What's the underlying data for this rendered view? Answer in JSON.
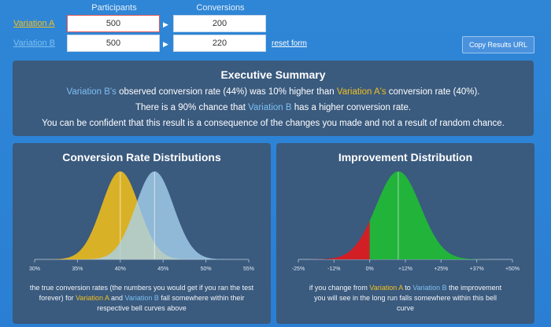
{
  "inputs": {
    "participants_header": "Participants",
    "conversions_header": "Conversions",
    "variation_a_label": "Variation A",
    "variation_b_label": "Variation B",
    "a_participants": "500",
    "a_conversions": "200",
    "b_participants": "500",
    "b_conversions": "220",
    "reset_label": "reset form",
    "copy_button_label": "Copy Results URL"
  },
  "summary": {
    "title": "Executive Summary",
    "line1": {
      "b_name": "Variation B's",
      "t1": " observed conversion rate (44%) was 10% higher than ",
      "a_name": "Variation A's",
      "t2": " conversion rate (40%)."
    },
    "line2": {
      "t1": "There is a 90% chance that ",
      "b_name": "Variation B",
      "t2": " has a higher conversion rate."
    },
    "line3": "You can be confident that this result is a consequence of the changes you made and not a result of random chance."
  },
  "distributions": {
    "title": "Conversion Rate Distributions",
    "caption": {
      "t1": "the true conversion rates (the numbers you would get if you ran the test forever) for ",
      "a_name": "Variation A",
      "t2": " and ",
      "b_name": "Variation B",
      "t3": "  fall somewhere within their respective bell curves above"
    }
  },
  "improvement": {
    "title": "Improvement Distribution",
    "caption": {
      "t1": "if you change from ",
      "a_name": "Variation A",
      "t2": " to ",
      "b_name": "Variation B",
      "t3": " the improvement you will see in the long run falls somewhere within this bell curve"
    }
  },
  "colors": {
    "a": "#e7b81f",
    "b": "#a9d2ef",
    "pos": "#22b33b",
    "neg": "#d21f25",
    "accent_a": "#f2c01e",
    "accent_b": "#7dc0f2"
  },
  "chart_data": [
    {
      "type": "area",
      "title": "Conversion Rate Distributions",
      "xlabel": "",
      "ylabel": "",
      "xlim": [
        30,
        55
      ],
      "ticks": [
        "30%",
        "35%",
        "40%",
        "45%",
        "50%",
        "55%"
      ],
      "series": [
        {
          "name": "Variation A",
          "mean": 40,
          "sd": 2.19,
          "color": "#e7b81f"
        },
        {
          "name": "Variation B",
          "mean": 44,
          "sd": 2.22,
          "color": "#a9d2ef"
        }
      ]
    },
    {
      "type": "area",
      "title": "Improvement Distribution",
      "xlabel": "",
      "ylabel": "",
      "xlim": [
        -25,
        50
      ],
      "ticks": [
        "-25%",
        "-12%",
        "0%",
        "+12%",
        "+25%",
        "+37%",
        "+50%"
      ],
      "series": [
        {
          "name": "Improvement",
          "mean": 10,
          "sd": 7.8,
          "color_positive": "#22b33b",
          "color_negative": "#d21f25",
          "split_at": 0
        }
      ]
    }
  ]
}
